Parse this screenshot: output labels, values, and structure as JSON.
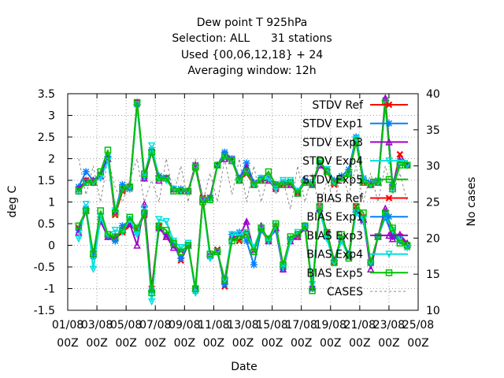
{
  "chart_data": {
    "type": "line",
    "title_lines": [
      "Dew point T 925hPa",
      "Selection: ALL      31 stations",
      "Used {00,06,12,18} + 24",
      "Averaging window: 12h"
    ],
    "xlabel": "Date",
    "ylabel": "deg C",
    "y2label": "No cases",
    "ylim": [
      -1.5,
      3.5
    ],
    "y2lim": [
      10,
      40
    ],
    "x_range": [
      0,
      24
    ],
    "x_ticks": [
      {
        "x": 0,
        "line1": "01/08",
        "line2": "00Z"
      },
      {
        "x": 2,
        "line1": "03/08",
        "line2": "00Z"
      },
      {
        "x": 4,
        "line1": "05/08",
        "line2": "00Z"
      },
      {
        "x": 6,
        "line1": "07/08",
        "line2": "00Z"
      },
      {
        "x": 8,
        "line1": "09/08",
        "line2": "00Z"
      },
      {
        "x": 10,
        "line1": "11/08",
        "line2": "00Z"
      },
      {
        "x": 12,
        "line1": "13/08",
        "line2": "00Z"
      },
      {
        "x": 14,
        "line1": "15/08",
        "line2": "00Z"
      },
      {
        "x": 16,
        "line1": "17/08",
        "line2": "00Z"
      },
      {
        "x": 18,
        "line1": "19/08",
        "line2": "00Z"
      },
      {
        "x": 20,
        "line1": "21/08",
        "line2": "00Z"
      },
      {
        "x": 22,
        "line1": "23/08",
        "line2": "00Z"
      },
      {
        "x": 24,
        "line1": "25/08",
        "line2": "00Z"
      }
    ],
    "y_ticks": [
      -1.5,
      -1,
      -0.5,
      0,
      0.5,
      1,
      1.5,
      2,
      2.5,
      3,
      3.5
    ],
    "y_tick_labels": [
      "-1.5",
      "-1",
      "-0.5",
      "0",
      "0.5",
      "1",
      "1.5",
      "2",
      "2.5",
      "3",
      "3.5"
    ],
    "y2_ticks": [
      10,
      15,
      20,
      25,
      30,
      35,
      40
    ],
    "y2_tick_labels": [
      "10",
      "15",
      "20",
      "25",
      "30",
      "35",
      "40"
    ],
    "grid": true,
    "legend_position": "top-right",
    "x": [
      0.75,
      1.25,
      1.75,
      2.25,
      2.75,
      3.25,
      3.75,
      4.25,
      4.75,
      5.25,
      5.75,
      6.25,
      6.75,
      7.25,
      7.75,
      8.25,
      8.75,
      9.25,
      9.75,
      10.25,
      10.75,
      11.25,
      11.75,
      12.25,
      12.75,
      13.25,
      13.75,
      14.25,
      14.75,
      15.25,
      15.75,
      16.25,
      16.75,
      17.25,
      17.75,
      18.25,
      18.75,
      19.25,
      19.75,
      20.25,
      20.75,
      21.25,
      21.75,
      22.25,
      22.75,
      23.25
    ],
    "series": [
      {
        "name": "STDV Ref",
        "color": "#ff0000",
        "marker": "x",
        "axis": "y1",
        "values": [
          1.3,
          1.5,
          1.45,
          1.6,
          2.0,
          0.7,
          1.25,
          1.35,
          3.3,
          1.6,
          2.15,
          1.55,
          1.55,
          1.3,
          1.25,
          1.25,
          1.85,
          1.05,
          1.1,
          1.85,
          2.1,
          2.0,
          1.5,
          1.65,
          1.4,
          1.5,
          1.5,
          1.3,
          1.4,
          1.4,
          1.2,
          1.45,
          1.4,
          1.85,
          1.7,
          1.4,
          1.55,
          1.65,
          2.4,
          1.45,
          1.4,
          1.45,
          3.3,
          1.35,
          2.1,
          1.85
        ]
      },
      {
        "name": "STDV Exp1",
        "color": "#0080ff",
        "marker": "star",
        "axis": "y1",
        "values": [
          1.35,
          1.7,
          1.5,
          1.65,
          2.05,
          0.8,
          1.4,
          1.3,
          3.25,
          1.55,
          2.2,
          1.6,
          1.55,
          1.3,
          1.3,
          1.25,
          1.85,
          1.05,
          1.1,
          1.85,
          2.15,
          2.0,
          1.55,
          1.9,
          1.45,
          1.55,
          1.55,
          1.4,
          1.45,
          1.45,
          1.25,
          1.5,
          1.4,
          1.9,
          1.75,
          1.5,
          1.6,
          1.75,
          2.5,
          1.55,
          1.45,
          1.5,
          3.35,
          1.4,
          1.95,
          1.85
        ]
      },
      {
        "name": "STDV Exp3",
        "color": "#a000c8",
        "marker": "triangle",
        "axis": "y1",
        "values": [
          1.3,
          1.5,
          1.5,
          1.6,
          2.0,
          0.75,
          1.3,
          1.35,
          3.3,
          1.55,
          2.15,
          1.5,
          1.55,
          1.3,
          1.25,
          1.25,
          1.85,
          1.05,
          1.1,
          1.85,
          2.0,
          1.95,
          1.5,
          1.8,
          1.4,
          1.5,
          1.5,
          1.35,
          1.4,
          1.4,
          1.2,
          1.45,
          1.4,
          1.85,
          1.7,
          1.45,
          1.55,
          1.65,
          2.4,
          1.45,
          1.4,
          1.45,
          3.4,
          1.35,
          1.95,
          1.85
        ]
      },
      {
        "name": "STDV Exp4",
        "color": "#00e0e0",
        "marker": "triangle-down",
        "axis": "y1",
        "values": [
          1.25,
          1.45,
          1.45,
          1.55,
          1.95,
          0.8,
          1.3,
          1.35,
          3.25,
          1.6,
          2.3,
          1.55,
          1.5,
          1.3,
          1.25,
          1.25,
          1.8,
          1.0,
          1.05,
          1.85,
          2.05,
          1.95,
          1.5,
          1.7,
          1.4,
          1.55,
          1.55,
          1.3,
          1.5,
          1.5,
          1.25,
          1.45,
          1.45,
          1.9,
          1.75,
          1.45,
          1.55,
          1.65,
          2.45,
          1.5,
          1.4,
          1.45,
          3.25,
          1.3,
          1.9,
          1.85
        ]
      },
      {
        "name": "STDV Exp5",
        "color": "#00c000",
        "marker": "box",
        "axis": "y1",
        "values": [
          1.25,
          1.45,
          1.45,
          1.7,
          2.2,
          0.75,
          1.3,
          1.35,
          3.3,
          1.65,
          2.15,
          1.55,
          1.55,
          1.25,
          1.25,
          1.25,
          1.8,
          1.0,
          1.05,
          1.85,
          2.05,
          1.95,
          1.5,
          1.7,
          1.4,
          1.5,
          1.7,
          1.4,
          1.4,
          1.45,
          1.2,
          1.45,
          1.4,
          1.95,
          1.7,
          1.45,
          1.55,
          1.65,
          2.4,
          1.45,
          1.4,
          1.45,
          3.3,
          1.3,
          1.85,
          1.85
        ]
      },
      {
        "name": "BIAS Ref",
        "color": "#ff0000",
        "marker": "x",
        "axis": "y1",
        "values": [
          0.4,
          0.8,
          -0.2,
          0.6,
          0.2,
          0.15,
          0.3,
          0.45,
          0.35,
          0.7,
          -1.0,
          0.45,
          0.2,
          0.05,
          -0.35,
          0.0,
          -1.0,
          1.1,
          -0.25,
          -0.1,
          -0.95,
          0.2,
          0.1,
          0.3,
          -0.05,
          0.35,
          0.1,
          0.45,
          -0.5,
          0.15,
          0.2,
          0.4,
          -1.0,
          0.9,
          0.3,
          -0.4,
          0.15,
          -0.25,
          0.9,
          0.65,
          -0.4,
          0.2,
          0.75,
          0.25,
          0.2,
          0.0
        ]
      },
      {
        "name": "BIAS Exp1",
        "color": "#0080ff",
        "marker": "star",
        "axis": "y1",
        "values": [
          0.35,
          0.85,
          -0.25,
          0.6,
          0.2,
          0.1,
          0.45,
          0.5,
          0.3,
          0.75,
          -1.05,
          0.4,
          0.25,
          0.0,
          -0.3,
          0.0,
          -1.05,
          1.05,
          -0.25,
          -0.15,
          -0.9,
          0.25,
          0.3,
          0.1,
          -0.45,
          0.35,
          0.15,
          0.35,
          -0.55,
          0.15,
          0.25,
          0.45,
          -1.0,
          0.8,
          0.2,
          -0.35,
          0.15,
          -0.2,
          0.75,
          0.55,
          -0.4,
          0.2,
          0.65,
          0.2,
          0.1,
          -0.05
        ]
      },
      {
        "name": "BIAS Exp3",
        "color": "#a000c8",
        "marker": "triangle",
        "axis": "y1",
        "values": [
          0.3,
          0.8,
          -0.2,
          0.55,
          0.2,
          0.2,
          0.35,
          0.5,
          0.0,
          0.95,
          -1.0,
          0.4,
          0.2,
          -0.05,
          -0.15,
          0.0,
          -1.0,
          1.05,
          -0.2,
          -0.15,
          -0.8,
          0.2,
          0.2,
          0.55,
          -0.15,
          0.45,
          0.1,
          0.4,
          -0.55,
          0.1,
          0.2,
          0.4,
          -0.95,
          0.85,
          0.3,
          -0.35,
          0.15,
          -0.25,
          0.85,
          0.6,
          -0.55,
          0.2,
          0.85,
          0.15,
          0.25,
          0.05
        ]
      },
      {
        "name": "BIAS Exp4",
        "color": "#00e0e0",
        "marker": "triangle-down",
        "axis": "y1",
        "values": [
          0.15,
          0.95,
          -0.55,
          0.65,
          0.25,
          0.35,
          0.3,
          0.6,
          0.25,
          0.85,
          -1.3,
          0.6,
          0.55,
          0.1,
          -0.05,
          0.05,
          -1.1,
          1.05,
          -0.3,
          -0.15,
          -0.8,
          0.25,
          0.25,
          0.3,
          -0.05,
          0.4,
          0.1,
          0.45,
          -0.5,
          0.1,
          0.3,
          0.4,
          -0.9,
          0.85,
          0.15,
          -0.4,
          0.1,
          -0.25,
          0.75,
          0.6,
          -0.4,
          0.2,
          0.7,
          0.35,
          0.15,
          -0.05
        ]
      },
      {
        "name": "BIAS Exp5",
        "color": "#00c000",
        "marker": "box",
        "axis": "y1",
        "values": [
          0.45,
          0.8,
          -0.2,
          0.8,
          0.25,
          0.2,
          0.35,
          0.65,
          0.4,
          0.75,
          -1.1,
          0.45,
          0.35,
          0.05,
          -0.15,
          0.0,
          -1.0,
          1.05,
          -0.2,
          -0.15,
          -0.8,
          0.1,
          0.15,
          0.25,
          -0.15,
          0.4,
          0.15,
          0.5,
          -0.45,
          0.2,
          0.25,
          0.45,
          -1.05,
          0.9,
          0.3,
          -0.4,
          0.25,
          -0.3,
          0.9,
          0.75,
          -0.4,
          0.2,
          0.75,
          0.4,
          0.05,
          0.0
        ]
      },
      {
        "name": "CASES",
        "color": "#888888",
        "marker": "none",
        "dashed": true,
        "axis": "y2",
        "values": [
          31,
          26,
          30,
          25,
          31,
          27,
          25,
          28,
          31,
          25,
          28,
          25,
          31,
          26,
          30,
          25,
          31,
          25,
          29,
          25,
          31,
          26,
          31,
          25,
          30,
          25,
          29,
          26,
          28,
          24,
          30,
          25,
          29,
          24,
          28,
          25,
          29,
          26,
          30,
          25,
          29,
          25,
          30,
          26,
          29,
          25
        ]
      }
    ]
  }
}
